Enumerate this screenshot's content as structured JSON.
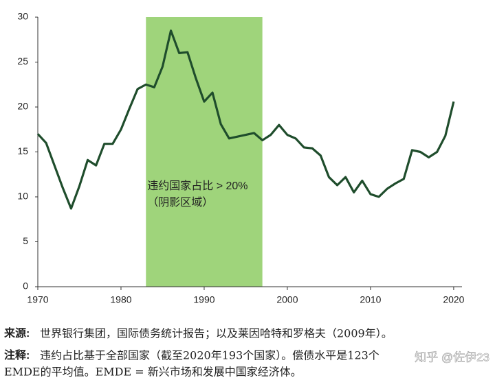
{
  "chart_data": {
    "type": "line",
    "x": [
      1970,
      1971,
      1972,
      1973,
      1974,
      1975,
      1976,
      1977,
      1978,
      1979,
      1980,
      1981,
      1982,
      1983,
      1984,
      1985,
      1986,
      1987,
      1988,
      1989,
      1990,
      1991,
      1992,
      1993,
      1994,
      1995,
      1996,
      1997,
      1998,
      1999,
      2000,
      2001,
      2002,
      2003,
      2004,
      2005,
      2006,
      2007,
      2008,
      2009,
      2010,
      2011,
      2012,
      2013,
      2014,
      2015,
      2016,
      2017,
      2018,
      2019,
      2020
    ],
    "series": [
      {
        "color": "#1f4d2c",
        "values": [
          17,
          16,
          13.5,
          11,
          8.7,
          11.2,
          14.1,
          13.5,
          15.9,
          15.9,
          17.5,
          19.8,
          22,
          22.5,
          22.2,
          24.5,
          28.5,
          26,
          26.1,
          23.2,
          20.6,
          21.6,
          18.1,
          16.5,
          16.7,
          16.9,
          17.1,
          16.3,
          16.9,
          18,
          16.9,
          16.5,
          15.5,
          15.4,
          14.6,
          12.2,
          11.3,
          12.2,
          10.5,
          11.8,
          10.3,
          10,
          10.9,
          11.5,
          12,
          15.2,
          15,
          14.4,
          15,
          16.8,
          20.6
        ]
      }
    ],
    "xlim": [
      1970,
      2021
    ],
    "xticks": [
      1970,
      1980,
      1990,
      2000,
      2010,
      2020
    ],
    "ylim": [
      0,
      30
    ],
    "yticks": [
      0,
      5,
      10,
      15,
      20,
      25,
      30
    ],
    "shade": {
      "range": [
        1983,
        1997
      ],
      "color": "#9fd47b",
      "lines": [
        "违约国家占比 > 20%",
        "（阴影区域）"
      ]
    }
  },
  "notes": {
    "source": {
      "label": "来源:",
      "text": "世界银行集团，国际债务统计报告；以及莱因哈特和罗格夫（2009年）。"
    },
    "note": {
      "label": "注释:",
      "lines": [
        "违约占比基于全部国家（截至2020年193个国家）。偿债水平是123个",
        "EMDE的平均值。EMDE = 新兴市场和发展中国家经济体。"
      ]
    }
  },
  "watermark": "知乎 @佐伊23"
}
